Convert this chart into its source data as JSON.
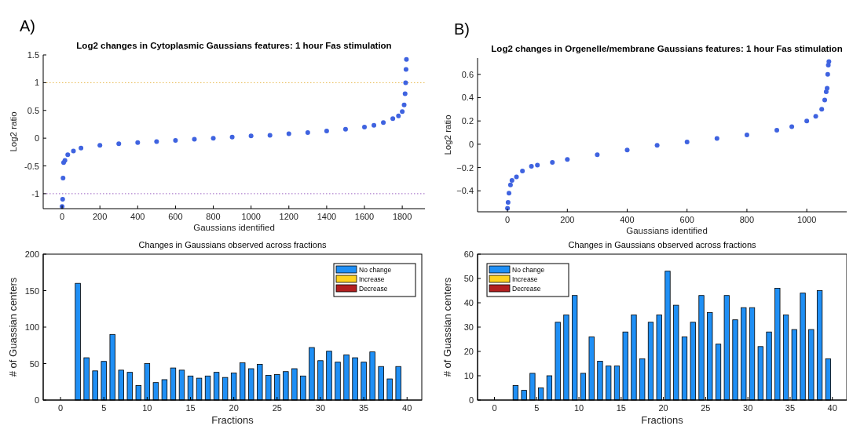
{
  "chart_data": [
    {
      "type": "scatter",
      "title": "Log2 changes in Cytoplasmic Gaussians features: 1 hour Fas stimulation",
      "xlabel": "Gaussians identified",
      "ylabel": "Log2 ratio",
      "annotations": [
        "A)"
      ],
      "marker": "circle",
      "grid": false,
      "xlim": [
        -100,
        1920
      ],
      "ylim": [
        -1.27,
        1.5
      ],
      "xticks": [
        0,
        200,
        400,
        600,
        800,
        1000,
        1200,
        1400,
        1600,
        1800
      ],
      "yticks": [
        -1,
        -0.5,
        0,
        0.5,
        1,
        1.5
      ],
      "ref_lines": [
        {
          "axis": "y",
          "value": 1,
          "color": "#e8b84a",
          "line_style": "dotted"
        },
        {
          "axis": "y",
          "value": -1,
          "color": "#9a5fc0",
          "line_style": "dotted"
        }
      ],
      "series": [
        {
          "color": "#3f63e0",
          "x": [
            0,
            3,
            5,
            8,
            15,
            30,
            60,
            100,
            200,
            300,
            400,
            500,
            600,
            700,
            800,
            900,
            1000,
            1100,
            1200,
            1300,
            1400,
            1500,
            1600,
            1650,
            1700,
            1750,
            1780,
            1800,
            1810,
            1815,
            1818,
            1820,
            1822
          ],
          "values": [
            -1.23,
            -1.1,
            -0.72,
            -0.44,
            -0.4,
            -0.3,
            -0.23,
            -0.18,
            -0.13,
            -0.1,
            -0.08,
            -0.06,
            -0.04,
            -0.02,
            0,
            0.02,
            0.04,
            0.05,
            0.08,
            0.1,
            0.13,
            0.16,
            0.2,
            0.23,
            0.28,
            0.35,
            0.4,
            0.48,
            0.6,
            0.8,
            1.0,
            1.24,
            1.42
          ]
        }
      ]
    },
    {
      "type": "scatter",
      "title": "Log2 changes in Orgenelle/membrane Gaussians features: 1 hour Fas stimulation",
      "xlabel": "Gaussians identified",
      "ylabel": "Log2 ratio",
      "annotations": [
        "B)"
      ],
      "marker": "circle",
      "grid": false,
      "xlim": [
        -100,
        1165
      ],
      "ylim": [
        -0.58,
        0.74
      ],
      "xticks": [
        0,
        200,
        400,
        600,
        800,
        1000
      ],
      "yticks": [
        {
          "value": -0.4,
          "label": "−0.4"
        },
        {
          "value": -0.2,
          "label": "−0.2"
        },
        0,
        0.2,
        0.4,
        0.6
      ],
      "series": [
        {
          "color": "#3f63e0",
          "x": [
            0,
            2,
            5,
            10,
            15,
            30,
            50,
            80,
            100,
            150,
            200,
            300,
            400,
            500,
            600,
            700,
            800,
            900,
            950,
            1000,
            1030,
            1050,
            1060,
            1065,
            1068,
            1070,
            1072,
            1074
          ],
          "values": [
            -0.55,
            -0.5,
            -0.42,
            -0.35,
            -0.31,
            -0.28,
            -0.23,
            -0.19,
            -0.18,
            -0.155,
            -0.13,
            -0.09,
            -0.05,
            -0.01,
            0.02,
            0.05,
            0.08,
            0.12,
            0.15,
            0.2,
            0.24,
            0.3,
            0.38,
            0.45,
            0.48,
            0.6,
            0.68,
            0.71
          ]
        }
      ]
    },
    {
      "type": "bar",
      "title": "Changes in Gaussians observed across fractions",
      "xlabel": "Fractions",
      "ylabel": "# of Guassian centers",
      "legend": "top right",
      "grid": false,
      "xlim": [
        -2,
        41.7
      ],
      "ylim": [
        0,
        200
      ],
      "xticks": [
        0,
        5,
        10,
        15,
        20,
        25,
        30,
        35,
        40
      ],
      "yticks": [
        0,
        50,
        100,
        150,
        200
      ],
      "x": [
        1,
        2,
        3,
        4,
        5,
        6,
        7,
        8,
        9,
        10,
        11,
        12,
        13,
        14,
        15,
        16,
        17,
        18,
        19,
        20,
        21,
        22,
        23,
        24,
        25,
        26,
        27,
        28,
        29,
        30,
        31,
        32,
        33,
        34,
        35,
        36,
        37,
        38,
        39,
        40
      ],
      "series": [
        {
          "name": "No change",
          "color": "#1f8ff5",
          "values": [
            0,
            160,
            58,
            40,
            53,
            90,
            41,
            38,
            20,
            50,
            24,
            28,
            44,
            41,
            33,
            30,
            33,
            38,
            31,
            37,
            51,
            43,
            49,
            34,
            35,
            39,
            43,
            33,
            72,
            54,
            67,
            52,
            62,
            58,
            52,
            66,
            46,
            29,
            46,
            0
          ]
        },
        {
          "name": "Increase",
          "color": "#ffd21f",
          "values": [
            0,
            0,
            0,
            0,
            0,
            0,
            0,
            0,
            0,
            0,
            0,
            0,
            0,
            0,
            0,
            0,
            0,
            0,
            0,
            0,
            0,
            0,
            0,
            0,
            0,
            0,
            0,
            0,
            0,
            0,
            0,
            0,
            0,
            0,
            0,
            0,
            0,
            0,
            0,
            0
          ]
        },
        {
          "name": "Decrease",
          "color": "#b21f1f",
          "values": [
            0,
            0,
            0,
            0,
            0,
            0,
            0,
            0,
            0,
            0,
            0,
            0,
            0,
            0,
            0,
            0,
            0,
            0,
            0,
            0,
            0,
            0,
            0,
            0,
            0,
            0,
            0,
            0,
            0,
            0,
            0,
            0,
            0,
            0,
            0,
            0,
            0,
            0,
            0,
            0
          ]
        }
      ]
    },
    {
      "type": "bar",
      "title": "Changes in Gaussians observed across fractions",
      "xlabel": "Fractions",
      "ylabel": "# of Guassian centers",
      "legend": "top left",
      "grid": false,
      "xlim": [
        -2,
        41.7
      ],
      "ylim": [
        0,
        60
      ],
      "xticks": [
        0,
        5,
        10,
        15,
        20,
        25,
        30,
        35,
        40
      ],
      "yticks": [
        0,
        10,
        20,
        30,
        40,
        50,
        60
      ],
      "x": [
        2.5,
        3.5,
        4.5,
        5.5,
        6.5,
        7.5,
        8.5,
        9.5,
        10.5,
        11.5,
        12.5,
        13.5,
        14.5,
        15.5,
        16.5,
        17.5,
        18.5,
        19.5,
        20.5,
        21.5,
        22.5,
        23.5,
        24.5,
        25.5,
        26.5,
        27.5,
        28.5,
        29.5,
        30.5,
        31.5,
        32.5,
        33.5,
        34.5,
        35.5,
        36.5,
        37.5,
        38.5,
        39.5
      ],
      "series": [
        {
          "name": "No change",
          "color": "#1f8ff5",
          "values": [
            6,
            4,
            11,
            5,
            10,
            32,
            35,
            43,
            11,
            26,
            16,
            14,
            14,
            28,
            35,
            17,
            32,
            35,
            53,
            39,
            26,
            32,
            43,
            36,
            23,
            43,
            33,
            38,
            38,
            22,
            28,
            46,
            35,
            29,
            44,
            29,
            45,
            17
          ]
        },
        {
          "name": "Increase",
          "color": "#ffd21f",
          "values": [
            0,
            0,
            0,
            0,
            0,
            0,
            0,
            0,
            0,
            0,
            0,
            0,
            0,
            0,
            0,
            0,
            0,
            0,
            0,
            0,
            0,
            0,
            0,
            0,
            0,
            0,
            0,
            0,
            0,
            0,
            0,
            0,
            0,
            0,
            0,
            0,
            0,
            0
          ]
        },
        {
          "name": "Decrease",
          "color": "#b21f1f",
          "values": [
            0,
            0,
            0,
            0,
            0,
            0,
            0,
            0,
            0,
            0,
            0,
            0,
            0,
            0,
            0,
            0,
            0,
            0,
            0,
            0,
            0,
            0,
            0,
            0,
            0,
            0,
            0,
            0,
            0,
            0,
            0,
            0,
            0,
            0,
            0,
            0,
            0,
            0
          ]
        }
      ]
    }
  ]
}
